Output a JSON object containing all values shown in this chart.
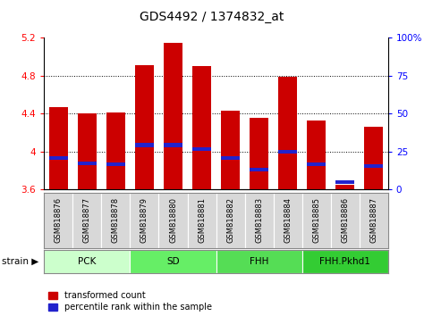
{
  "title": "GDS4492 / 1374832_at",
  "samples": [
    "GSM818876",
    "GSM818877",
    "GSM818878",
    "GSM818879",
    "GSM818880",
    "GSM818881",
    "GSM818882",
    "GSM818883",
    "GSM818884",
    "GSM818885",
    "GSM818886",
    "GSM818887"
  ],
  "red_values": [
    4.47,
    4.4,
    4.41,
    4.91,
    5.15,
    4.9,
    4.43,
    4.36,
    4.79,
    4.33,
    3.65,
    4.26
  ],
  "blue_values": [
    3.93,
    3.88,
    3.87,
    4.07,
    4.07,
    4.03,
    3.93,
    3.81,
    4.0,
    3.87,
    3.68,
    3.85
  ],
  "ylim_left": [
    3.6,
    5.2
  ],
  "ylim_right": [
    0,
    100
  ],
  "yticks_left": [
    3.6,
    4.0,
    4.4,
    4.8,
    5.2
  ],
  "yticks_right": [
    0,
    25,
    50,
    75,
    100
  ],
  "ytick_labels_left": [
    "3.6",
    "4",
    "4.4",
    "4.8",
    "5.2"
  ],
  "ytick_labels_right": [
    "0",
    "25",
    "50",
    "75",
    "100%"
  ],
  "dotted_lines": [
    4.0,
    4.4,
    4.8
  ],
  "bar_color": "#cc0000",
  "blue_color": "#2222cc",
  "bar_bottom": 3.6,
  "bar_width": 0.65,
  "blue_bar_height": 0.04,
  "strain_groups": [
    {
      "label": "PCK",
      "start": 0,
      "end": 3,
      "color": "#ccffcc"
    },
    {
      "label": "SD",
      "start": 3,
      "end": 6,
      "color": "#66ee66"
    },
    {
      "label": "FHH",
      "start": 6,
      "end": 9,
      "color": "#55dd55"
    },
    {
      "label": "FHH.Pkhd1",
      "start": 9,
      "end": 12,
      "color": "#33cc33"
    }
  ],
  "legend_red_label": "transformed count",
  "legend_blue_label": "percentile rank within the sample"
}
